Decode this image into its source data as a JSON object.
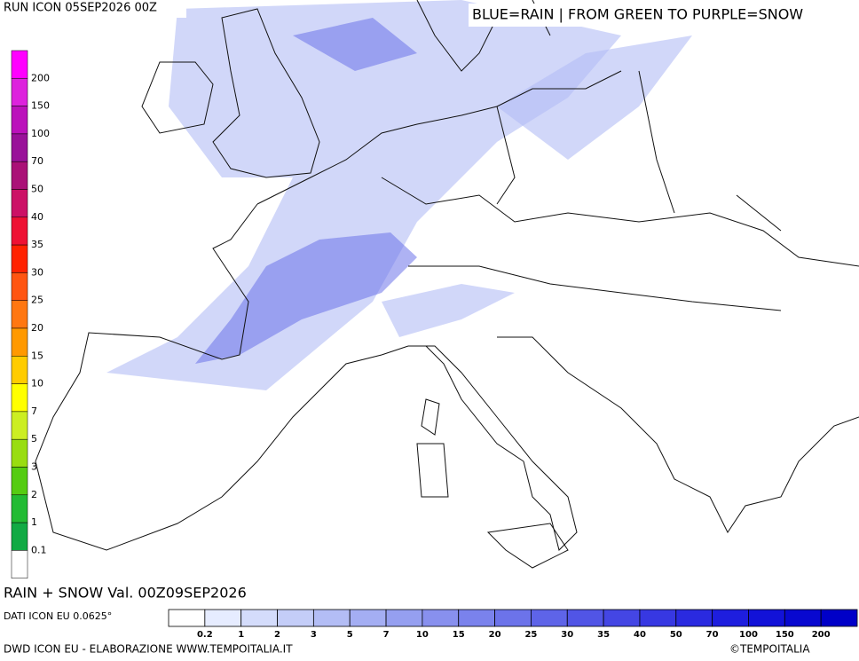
{
  "header": {
    "run": "RUN ICON 05SEP2026 00Z",
    "key": "BLUE=RAIN | FROM GREEN TO PURPLE=SNOW"
  },
  "snow_scale": {
    "labels": [
      200,
      150,
      100,
      70,
      50,
      40,
      35,
      30,
      25,
      20,
      15,
      10,
      7,
      5,
      3,
      2,
      1,
      0.1
    ],
    "colors": [
      "#ff00ff",
      "#dd22dd",
      "#bb11bb",
      "#991199",
      "#aa1177",
      "#cc1166",
      "#ee1133",
      "#ff2200",
      "#ff5511",
      "#ff7711",
      "#ff9900",
      "#ffcc00",
      "#ffff00",
      "#ccee22",
      "#99dd11",
      "#55cc11",
      "#22bb33",
      "#11aa44",
      "#ffffff"
    ]
  },
  "footer": {
    "valid": "RAIN + SNOW Val. 00Z09SEP2026",
    "data_source": "DATI ICON EU 0.0625°",
    "credit": "DWD ICON EU - ELABORAZIONE WWW.TEMPOITALIA.IT",
    "copyright": "©TEMPOITALIA"
  },
  "rain_scale": {
    "labels": [
      0.2,
      1,
      2,
      3,
      5,
      7,
      10,
      15,
      20,
      25,
      30,
      35,
      40,
      50,
      70,
      100,
      150,
      200
    ],
    "colors": [
      "#ffffff",
      "#e6ecff",
      "#d4dcfb",
      "#c4cdf8",
      "#b3bdf5",
      "#a4aef3",
      "#959ff0",
      "#8890ee",
      "#7a82ec",
      "#6c73ea",
      "#5e64e8",
      "#5155e6",
      "#4446e4",
      "#3738e2",
      "#2a2ae0",
      "#1e1ede",
      "#1212d8",
      "#0808d0",
      "#0000c8"
    ]
  }
}
